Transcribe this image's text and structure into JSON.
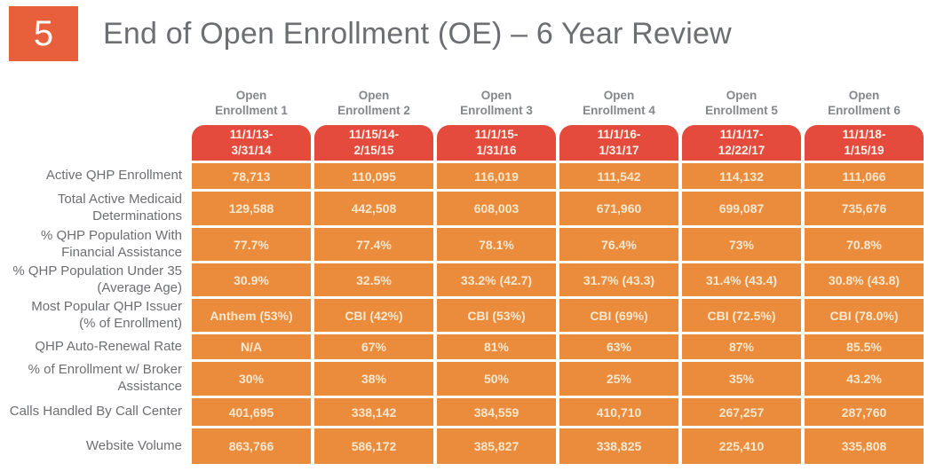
{
  "header": {
    "slide_number": "5",
    "title": "End of Open Enrollment (OE) – 6 Year Review"
  },
  "colors": {
    "slide_number_box": "#E8603B",
    "title_text": "#6D6E71",
    "column_header_text": "#85878A",
    "date_pill_background": "#E44B3D",
    "date_pill_text": "#FDF2EC",
    "data_cell_background": "#EB8C3D",
    "data_cell_text": "#F8E8D0",
    "row_label_text": "#6D6E71"
  },
  "table": {
    "columns": [
      {
        "label": "Open\nEnrollment 1",
        "date_range": "11/1/13-\n3/31/14"
      },
      {
        "label": "Open\nEnrollment 2",
        "date_range": "11/15/14-\n2/15/15"
      },
      {
        "label": "Open\nEnrollment 3",
        "date_range": "11/1/15-\n1/31/16"
      },
      {
        "label": "Open\nEnrollment 4",
        "date_range": "11/1/16-\n1/31/17"
      },
      {
        "label": "Open\nEnrollment 5",
        "date_range": "11/1/17-\n12/22/17"
      },
      {
        "label": "Open\nEnrollment 6",
        "date_range": "11/1/18-\n1/15/19"
      }
    ],
    "rows": [
      {
        "label": "Active QHP Enrollment",
        "values": [
          "78,713",
          "110,095",
          "116,019",
          "111,542",
          "114,132",
          "111,066"
        ]
      },
      {
        "label": "Total Active Medicaid\nDeterminations",
        "values": [
          "129,588",
          "442,508",
          "608,003",
          "671,960",
          "699,087",
          "735,676"
        ]
      },
      {
        "label": "% QHP Population With\nFinancial Assistance",
        "values": [
          "77.7%",
          "77.4%",
          "78.1%",
          "76.4%",
          "73%",
          "70.8%"
        ]
      },
      {
        "label": "% QHP Population Under 35\n(Average Age)",
        "values": [
          "30.9%",
          "32.5%",
          "33.2% (42.7)",
          "31.7% (43.3)",
          "31.4% (43.4)",
          "30.8% (43.8)"
        ]
      },
      {
        "label": "Most Popular QHP Issuer\n(% of Enrollment)",
        "values": [
          "Anthem (53%)",
          "CBI (42%)",
          "CBI (53%)",
          "CBI (69%)",
          "CBI (72.5%)",
          "CBI (78.0%)"
        ]
      },
      {
        "label": "QHP Auto-Renewal Rate",
        "values": [
          "N/A",
          "67%",
          "81%",
          "63%",
          "87%",
          "85.5%"
        ]
      },
      {
        "label": "% of Enrollment w/ Broker\nAssistance",
        "values": [
          "30%",
          "38%",
          "50%",
          "25%",
          "35%",
          "43.2%"
        ]
      },
      {
        "label": "Calls Handled By Call Center",
        "values": [
          "401,695",
          "338,142",
          "384,559",
          "410,710",
          "267,257",
          "287,760"
        ]
      },
      {
        "label": "Website Volume",
        "values": [
          "863,766",
          "586,172",
          "385,827",
          "338,825",
          "225,410",
          "335,808"
        ]
      }
    ]
  }
}
